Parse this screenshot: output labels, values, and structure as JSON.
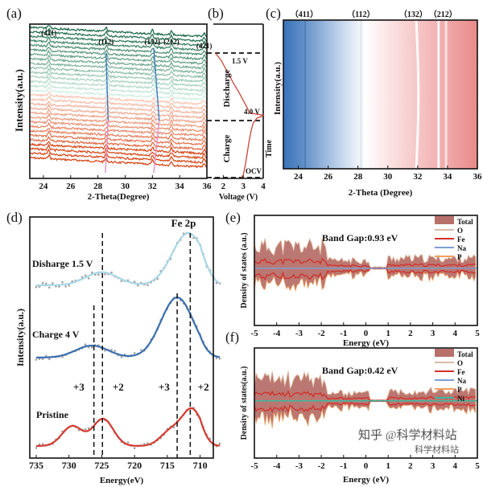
{
  "panels": {
    "a": {
      "label": "(a)"
    },
    "b": {
      "label": "(b)"
    },
    "c": {
      "label": "(c)"
    },
    "d": {
      "label": "(d)"
    },
    "e": {
      "label": "(e)"
    },
    "f": {
      "label": "(f)"
    }
  },
  "watermark": {
    "text": "知乎 @科学材料站",
    "sub": "科学材料站"
  },
  "chart_data": [
    {
      "id": "a",
      "type": "line",
      "xlabel": "2-Theta(Degree)",
      "ylabel": "Intensity(a.u.)",
      "xlim": [
        23,
        36
      ],
      "xticks": [
        24,
        26,
        28,
        30,
        32,
        34,
        36
      ],
      "peaks": [
        {
          "label": "(411)",
          "x": 24.4
        },
        {
          "label": "(112)",
          "x": 28.6
        },
        {
          "label": "(132)",
          "x": 32.0
        },
        {
          "label": "(212)",
          "x": 33.4
        },
        {
          "label": "(421)",
          "x": 35.8
        }
      ],
      "series_count": 30,
      "colors": {
        "charge_start": "#d84a1b",
        "charge_end": "#f8c6b4",
        "discharge_start": "#cfeee2",
        "discharge_end": "#1e6b4a",
        "guide_top": "#3b78c4",
        "guide_bottom": "#e58fc8"
      }
    },
    {
      "id": "b",
      "type": "line",
      "xlabel": "Voltage (V)",
      "ylabel": "Time",
      "xlim": [
        1.5,
        4
      ],
      "xticks": [
        2,
        3,
        4
      ],
      "annotations": [
        "1.5 V",
        "4.0 V",
        "OCV"
      ],
      "regions": [
        "Discharge",
        "Charge"
      ],
      "x": [
        2.9,
        3.0,
        3.1,
        3.2,
        3.3,
        3.4,
        3.5,
        3.7,
        3.9,
        4.0,
        3.3,
        3.2,
        3.0,
        2.8,
        2.5,
        2.2,
        1.9,
        1.6
      ],
      "y": [
        0,
        0.02,
        0.1,
        0.2,
        0.3,
        0.38,
        0.44,
        0.48,
        0.49,
        0.5,
        0.52,
        0.56,
        0.62,
        0.68,
        0.76,
        0.85,
        0.94,
        1.0
      ],
      "color": "#c9473a"
    },
    {
      "id": "c",
      "type": "heatmap",
      "xlabel": "2-Theta (Degree)",
      "ylabel": "Time",
      "colorbar_label": "Intensity(a.u.)",
      "xlim": [
        23,
        36
      ],
      "xticks": [
        24,
        26,
        28,
        30,
        32,
        34,
        36
      ],
      "peaks": [
        {
          "label": "（411）",
          "x": 24.4
        },
        {
          "label": "（112）",
          "x": 28.2
        },
        {
          "label": "（132）",
          "x": 31.9
        },
        {
          "label": "（212）",
          "x": 33.4
        }
      ],
      "colors": {
        "low": "#3a72b8",
        "mid": "#ffffff",
        "high": "#e98a8a"
      }
    },
    {
      "id": "d",
      "type": "line",
      "title": "Fe 2p",
      "xlabel": "Energy(eV)",
      "ylabel": "Intensity(a.u.)",
      "xlim": [
        735,
        707
      ],
      "xticks": [
        735,
        730,
        725,
        720,
        715,
        710
      ],
      "reference_lines": [
        726.2,
        724.9,
        713.5,
        711.5
      ],
      "region_labels": [
        {
          "text": "+3",
          "x": 728.5
        },
        {
          "text": "+2",
          "x": 722.5
        },
        {
          "text": "+3",
          "x": 715.5
        },
        {
          "text": "+2",
          "x": 709.5
        }
      ],
      "series": [
        {
          "name": "Disharge 1.5 V",
          "color": "#a9d6e6",
          "peaks": [
            [
              711.8,
              1.0
            ],
            [
              725,
              0.25
            ]
          ]
        },
        {
          "name": "Charge 4 V",
          "color": "#3a6fae",
          "peaks": [
            [
              713.5,
              1.0
            ],
            [
              726.5,
              0.2
            ]
          ]
        },
        {
          "name": "Pristine",
          "color": "#d63a30",
          "peaks": [
            [
              711.2,
              1.0
            ],
            [
              724.8,
              0.75
            ],
            [
              729.5,
              0.55
            ],
            [
              714.5,
              0.4
            ]
          ]
        }
      ],
      "marker_color": "#888888"
    },
    {
      "id": "e",
      "type": "area",
      "annotation": "Band Gap:0.93 eV",
      "xlabel": "Energy (eV)",
      "ylabel": "Density of states (a.u.)",
      "xlim": [
        -5,
        5
      ],
      "xticks": [
        -5,
        -4,
        -3,
        -2,
        -1,
        0,
        1,
        2,
        3,
        4,
        5
      ],
      "legend": [
        {
          "name": "Total",
          "color": "#b8706a"
        },
        {
          "name": "O",
          "color": "#d9b9a8"
        },
        {
          "name": "Fe",
          "color": "#d0302a"
        },
        {
          "name": "Na",
          "color": "#7f9fd3"
        },
        {
          "name": "P",
          "color": "#f2a060"
        }
      ],
      "legend_position": "top-right",
      "gap": [
        -0.93,
        0.0
      ]
    },
    {
      "id": "f",
      "type": "area",
      "annotation": "Band Gap:0.42 eV",
      "xlabel": "Energy (eV)",
      "ylabel": "Density of states(a.u.)",
      "xlim": [
        -5,
        5
      ],
      "xticks": [
        -5,
        -4,
        -3,
        -2,
        -1,
        0,
        1,
        2,
        3,
        4,
        5
      ],
      "legend": [
        {
          "name": "Total",
          "color": "#b8706a"
        },
        {
          "name": "O",
          "color": "#d9b9a8"
        },
        {
          "name": "Fe",
          "color": "#d0302a"
        },
        {
          "name": "Na",
          "color": "#7f9fd3"
        },
        {
          "name": "P",
          "color": "#f2a060"
        },
        {
          "name": "Ni",
          "color": "#3cb8a0"
        }
      ],
      "legend_position": "top-right",
      "gap": [
        -0.42,
        0.0
      ]
    }
  ]
}
